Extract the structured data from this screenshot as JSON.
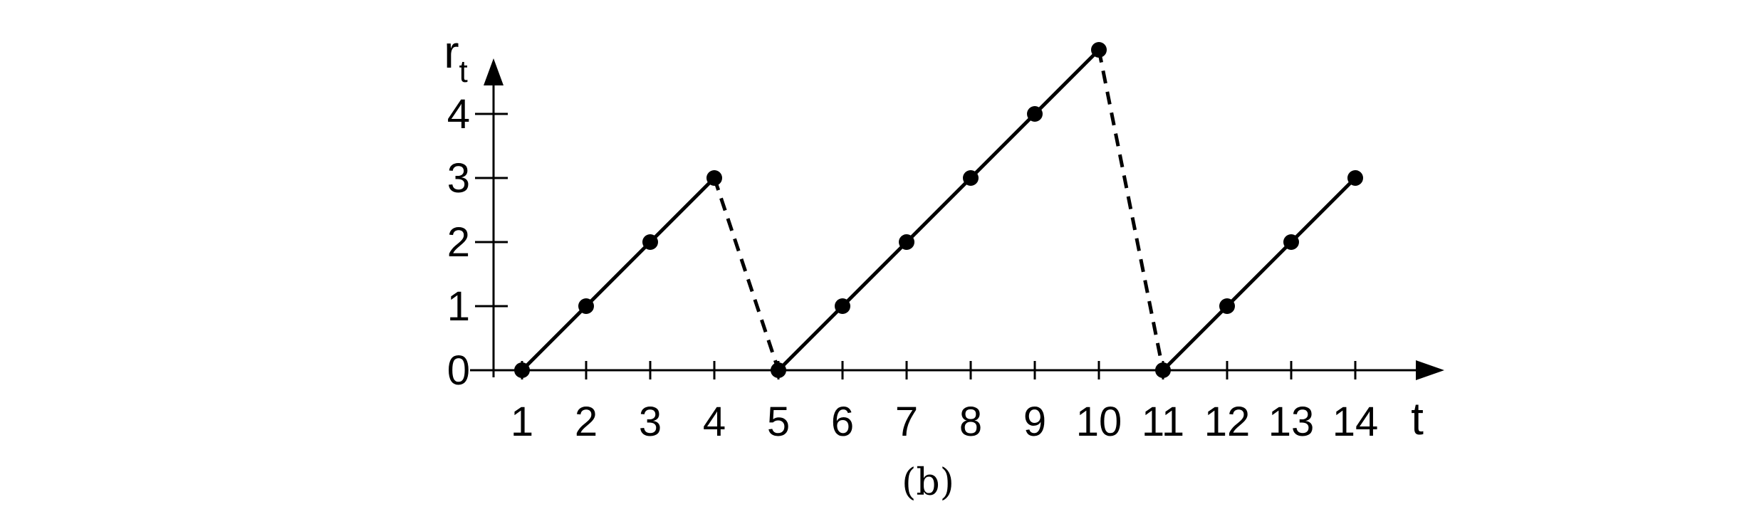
{
  "chart_data": {
    "type": "line",
    "x": [
      1,
      2,
      3,
      4,
      5,
      6,
      7,
      8,
      9,
      10,
      11,
      12,
      13,
      14
    ],
    "y": [
      0,
      1,
      2,
      3,
      0,
      1,
      2,
      3,
      4,
      5,
      0,
      1,
      2,
      3
    ],
    "segments": [
      [
        1,
        4
      ],
      [
        5,
        10
      ],
      [
        11,
        14
      ]
    ],
    "reset_lines": [
      [
        4,
        5
      ],
      [
        10,
        11
      ]
    ],
    "xlabel": "t",
    "ylabel": "r",
    "ylabel_subscript": "t",
    "x_ticks": [
      "1",
      "2",
      "3",
      "4",
      "5",
      "6",
      "7",
      "8",
      "9",
      "10",
      "11",
      "12",
      "13",
      "14"
    ],
    "y_ticks": [
      "0",
      "1",
      "2",
      "3",
      "4"
    ],
    "xlim": [
      0.5,
      15.5
    ],
    "ylim": [
      0,
      5
    ],
    "grid": false,
    "legend": "none",
    "caption": "(b)"
  }
}
